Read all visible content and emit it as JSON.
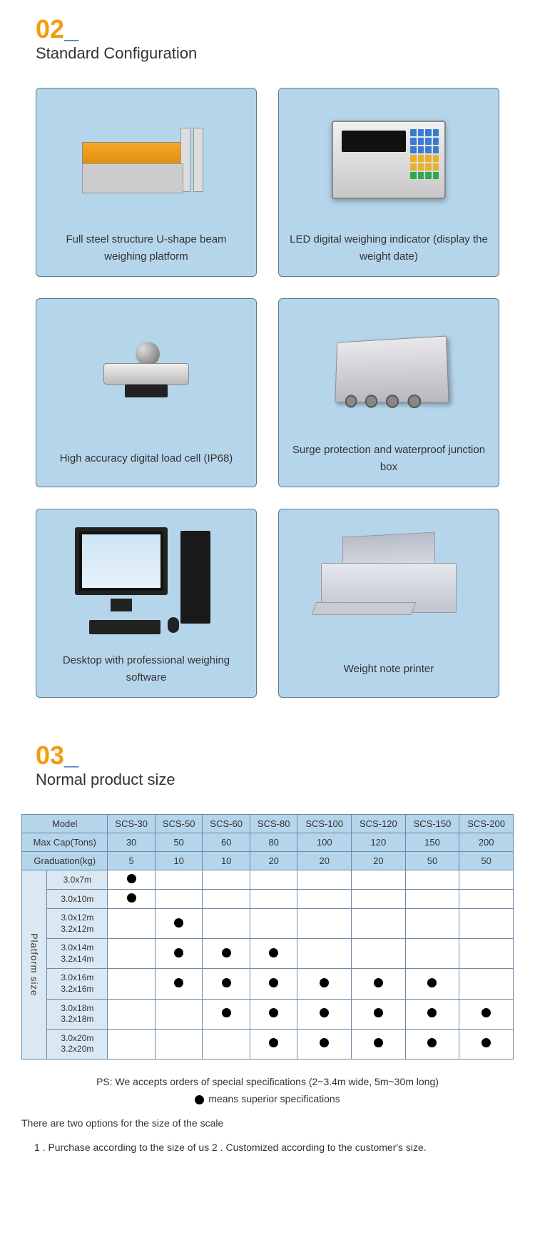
{
  "section02": {
    "num": "02",
    "underscore": "_",
    "title": "Standard Configuration",
    "cards": [
      {
        "caption": "Full steel structure U-shape beam weighing platform"
      },
      {
        "caption": "LED digital weighing indicator (display the weight date)"
      },
      {
        "caption": "High accuracy digital load cell (IP68)"
      },
      {
        "caption": "Surge protection and waterproof junction box"
      },
      {
        "caption": "Desktop with professional weighing software"
      },
      {
        "caption": "Weight note printer"
      }
    ]
  },
  "section03": {
    "num": "03",
    "underscore": "_",
    "title": "Normal product size",
    "table": {
      "columns": [
        "Model",
        "SCS-30",
        "SCS-50",
        "SCS-60",
        "SCS-80",
        "SCS-100",
        "SCS-120",
        "SCS-150",
        "SCS-200"
      ],
      "row_maxcap_label": "Max Cap(Tons)",
      "row_maxcap": [
        "30",
        "50",
        "60",
        "80",
        "100",
        "120",
        "150",
        "200"
      ],
      "row_grad_label": "Graduation(kg)",
      "row_grad": [
        "5",
        "10",
        "10",
        "20",
        "20",
        "20",
        "50",
        "50"
      ],
      "platform_label": "Platform size",
      "sizes": [
        {
          "label": "3.0x7m",
          "dots": [
            1,
            0,
            0,
            0,
            0,
            0,
            0,
            0
          ]
        },
        {
          "label": "3.0x10m",
          "dots": [
            1,
            0,
            0,
            0,
            0,
            0,
            0,
            0
          ]
        },
        {
          "label": "3.0x12m\n3.2x12m",
          "dots": [
            0,
            1,
            0,
            0,
            0,
            0,
            0,
            0
          ]
        },
        {
          "label": "3.0x14m\n3.2x14m",
          "dots": [
            0,
            1,
            1,
            1,
            0,
            0,
            0,
            0
          ]
        },
        {
          "label": "3.0x16m\n3.2x16m",
          "dots": [
            0,
            1,
            1,
            1,
            1,
            1,
            1,
            0
          ]
        },
        {
          "label": "3.0x18m\n3.2x18m",
          "dots": [
            0,
            0,
            1,
            1,
            1,
            1,
            1,
            1
          ]
        },
        {
          "label": "3.0x20m\n3.2x20m",
          "dots": [
            0,
            0,
            0,
            1,
            1,
            1,
            1,
            1
          ]
        }
      ]
    },
    "notes": {
      "ps": "PS: We accepts orders of special specifications (2~3.4m wide, 5m~30m long)",
      "legend": "means superior specifications",
      "options_intro": "There are two options for the size of the scale",
      "options": "1 . Purchase according to the size of us 2 .  Customized according to the customer's size."
    }
  },
  "colors": {
    "accent_orange": "#f39c12",
    "accent_blue": "#2d6fb5",
    "card_bg": "#b5d5eb",
    "table_border": "#6a89a5"
  }
}
